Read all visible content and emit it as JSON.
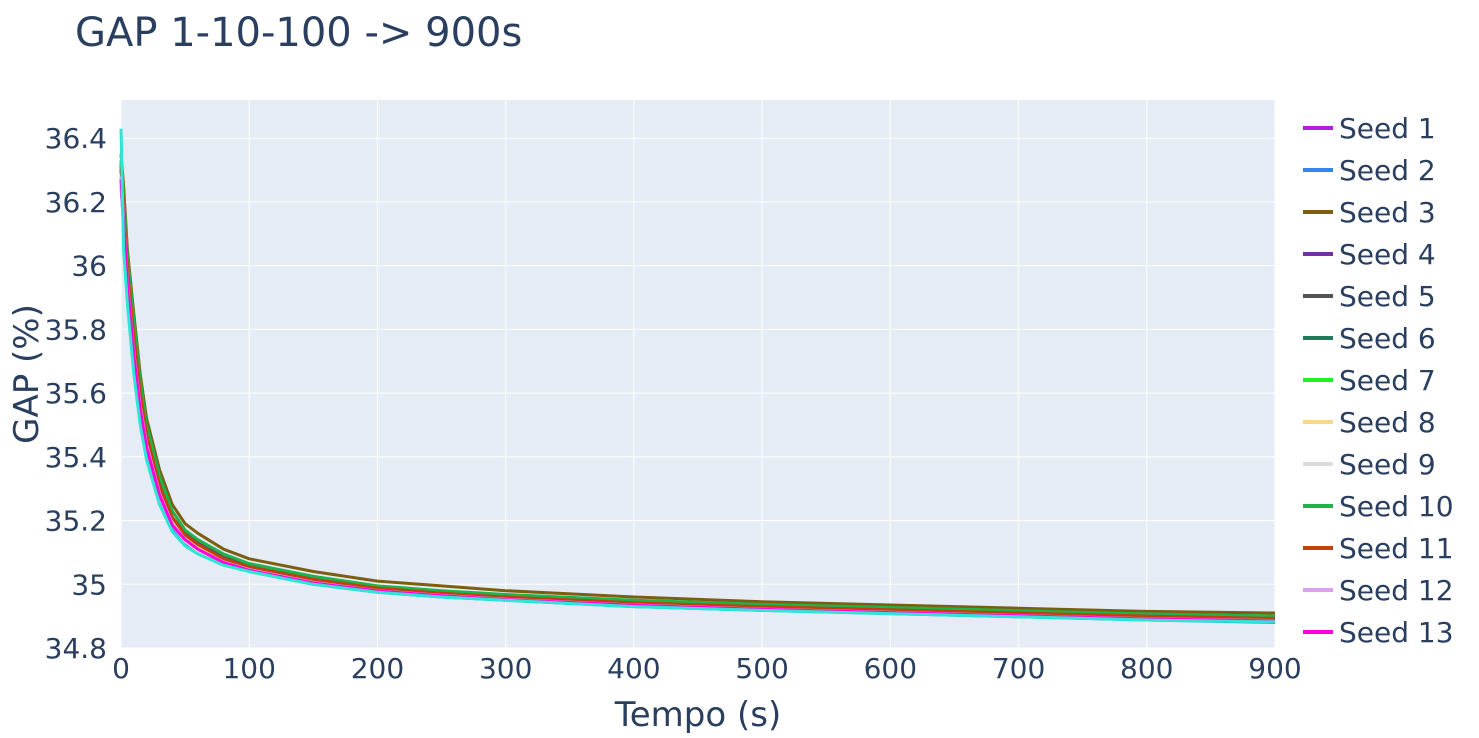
{
  "chart_data": {
    "type": "line",
    "title": "GAP 1-10-100 -> 900s",
    "xlabel": "Tempo (s)",
    "ylabel": "GAP (%)",
    "xlim": [
      0,
      900
    ],
    "ylim": [
      34.8,
      36.52
    ],
    "xticks": [
      0,
      100,
      200,
      300,
      400,
      500,
      600,
      700,
      800,
      900
    ],
    "yticks": [
      34.8,
      35,
      35.2,
      35.4,
      35.6,
      35.8,
      36,
      36.2,
      36.4
    ],
    "ytick_labels": [
      "34.8",
      "35",
      "35.2",
      "35.4",
      "35.6",
      "35.8",
      "36",
      "36.2",
      "36.4"
    ],
    "grid": true,
    "legend_position": "right",
    "plot_background": "#e5ecf6",
    "grid_color": "#ffffff",
    "x": [
      0,
      2,
      5,
      10,
      15,
      20,
      30,
      40,
      50,
      60,
      80,
      100,
      150,
      200,
      250,
      300,
      400,
      500,
      600,
      700,
      800,
      900
    ],
    "series": [
      {
        "name": "Seed 1",
        "color": "#b01ee0",
        "values": [
          36.3,
          36.18,
          35.98,
          35.75,
          35.58,
          35.46,
          35.3,
          35.2,
          35.15,
          35.12,
          35.08,
          35.05,
          35.01,
          34.98,
          34.965,
          34.955,
          34.935,
          34.925,
          34.915,
          34.905,
          34.895,
          34.888
        ]
      },
      {
        "name": "Seed 2",
        "color": "#3385f0",
        "values": [
          36.25,
          36.12,
          35.92,
          35.7,
          35.54,
          35.42,
          35.27,
          35.18,
          35.13,
          35.1,
          35.07,
          35.04,
          35.0,
          34.975,
          34.96,
          34.95,
          34.93,
          34.918,
          34.908,
          34.898,
          34.888,
          34.88
        ]
      },
      {
        "name": "Seed 3",
        "color": "#7d5e10",
        "values": [
          36.35,
          36.25,
          36.05,
          35.85,
          35.66,
          35.52,
          35.36,
          35.25,
          35.19,
          35.16,
          35.11,
          35.08,
          35.04,
          35.01,
          34.995,
          34.98,
          34.96,
          34.945,
          34.935,
          34.925,
          34.915,
          34.91
        ]
      },
      {
        "name": "Seed 4",
        "color": "#7330a5",
        "values": [
          36.28,
          36.15,
          35.95,
          35.72,
          35.56,
          35.44,
          35.28,
          35.19,
          35.14,
          35.11,
          35.07,
          35.045,
          35.005,
          34.978,
          34.962,
          34.952,
          34.932,
          34.92,
          34.91,
          34.9,
          34.89,
          34.883
        ]
      },
      {
        "name": "Seed 5",
        "color": "#555555",
        "values": [
          36.32,
          36.2,
          36.0,
          35.8,
          35.62,
          35.48,
          35.32,
          35.21,
          35.16,
          35.13,
          35.085,
          35.06,
          35.02,
          34.99,
          34.975,
          34.963,
          34.945,
          34.932,
          34.922,
          34.912,
          34.902,
          34.895
        ]
      },
      {
        "name": "Seed 6",
        "color": "#1f7a5a",
        "values": [
          36.3,
          36.17,
          35.97,
          35.76,
          35.59,
          35.46,
          35.3,
          35.2,
          35.15,
          35.12,
          35.075,
          35.05,
          35.01,
          34.985,
          34.97,
          34.958,
          34.94,
          34.928,
          34.918,
          34.908,
          34.898,
          34.89
        ]
      },
      {
        "name": "Seed 7",
        "color": "#22ee22",
        "values": [
          36.27,
          36.14,
          35.94,
          35.73,
          35.56,
          35.44,
          35.28,
          35.19,
          35.14,
          35.11,
          35.07,
          35.045,
          35.005,
          34.98,
          34.965,
          34.953,
          34.935,
          34.922,
          34.912,
          34.902,
          34.892,
          34.885
        ]
      },
      {
        "name": "Seed 8",
        "color": "#f7d68f",
        "values": [
          36.29,
          36.16,
          35.96,
          35.74,
          35.57,
          35.45,
          35.29,
          35.195,
          35.145,
          35.115,
          35.072,
          35.048,
          35.008,
          34.982,
          34.967,
          34.955,
          34.937,
          34.924,
          34.914,
          34.904,
          34.894,
          34.887
        ]
      },
      {
        "name": "Seed 9",
        "color": "#dcdcdc",
        "values": [
          36.26,
          36.13,
          35.93,
          35.71,
          35.55,
          35.43,
          35.275,
          35.185,
          35.135,
          35.105,
          35.068,
          35.043,
          35.003,
          34.978,
          34.963,
          34.951,
          34.933,
          34.92,
          34.91,
          34.9,
          34.89,
          34.884
        ]
      },
      {
        "name": "Seed 10",
        "color": "#1db54a",
        "values": [
          36.33,
          36.22,
          36.03,
          35.83,
          35.64,
          35.5,
          35.34,
          35.23,
          35.17,
          35.14,
          35.095,
          35.065,
          35.025,
          34.995,
          34.98,
          34.968,
          34.95,
          34.937,
          34.927,
          34.917,
          34.907,
          34.9
        ]
      },
      {
        "name": "Seed 11",
        "color": "#c2410c",
        "values": [
          36.31,
          36.19,
          35.99,
          35.78,
          35.6,
          35.47,
          35.31,
          35.21,
          35.155,
          35.125,
          35.08,
          35.055,
          35.015,
          34.988,
          34.972,
          34.96,
          34.942,
          34.93,
          34.92,
          34.91,
          34.9,
          34.893
        ]
      },
      {
        "name": "Seed 12",
        "color": "#dca0ee",
        "values": [
          36.28,
          36.15,
          35.95,
          35.73,
          35.56,
          35.44,
          35.285,
          35.19,
          35.14,
          35.11,
          35.07,
          35.046,
          35.006,
          34.98,
          34.965,
          34.953,
          34.935,
          34.922,
          34.912,
          34.902,
          34.892,
          34.886
        ]
      },
      {
        "name": "Seed 13",
        "color": "#ff00dd",
        "values": [
          36.27,
          36.14,
          35.94,
          35.72,
          35.55,
          35.43,
          35.28,
          35.185,
          35.14,
          35.11,
          35.068,
          35.044,
          35.004,
          34.979,
          34.964,
          34.952,
          34.934,
          34.921,
          34.911,
          34.901,
          34.891,
          34.885
        ]
      },
      {
        "name": "",
        "color": "#2ee6d6",
        "values": [
          36.43,
          36.05,
          35.88,
          35.66,
          35.5,
          35.39,
          35.25,
          35.165,
          35.12,
          35.095,
          35.06,
          35.04,
          35.0,
          34.975,
          34.96,
          34.95,
          34.93,
          34.918,
          34.908,
          34.898,
          34.888,
          34.882
        ]
      }
    ]
  }
}
